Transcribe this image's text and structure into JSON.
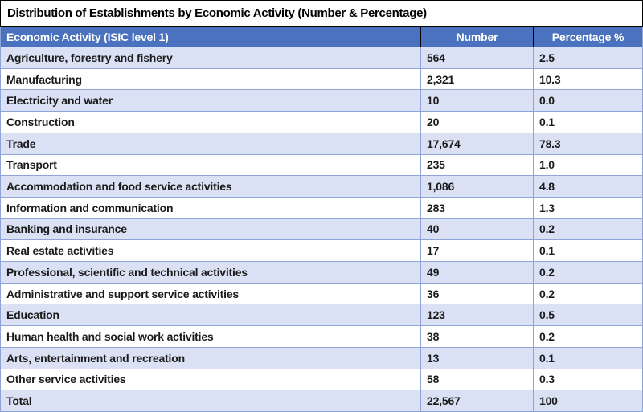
{
  "title": "Distribution of Establishments by Economic Activity (Number & Percentage)",
  "table": {
    "columns": [
      "Economic Activity (ISIC level 1)",
      "Number",
      "Percentage %"
    ],
    "rows": [
      [
        "Agriculture, forestry and fishery",
        "564",
        "2.5"
      ],
      [
        "Manufacturing",
        "2,321",
        "10.3"
      ],
      [
        "Electricity and water",
        "10",
        "0.0"
      ],
      [
        "Construction",
        "20",
        "0.1"
      ],
      [
        "Trade",
        "17,674",
        "78.3"
      ],
      [
        "Transport",
        "235",
        "1.0"
      ],
      [
        "Accommodation and food service activities",
        "1,086",
        "4.8"
      ],
      [
        "Information and communication",
        "283",
        "1.3"
      ],
      [
        "Banking and insurance",
        "40",
        "0.2"
      ],
      [
        "Real estate activities",
        "17",
        "0.1"
      ],
      [
        "Professional, scientific and technical activities",
        "49",
        "0.2"
      ],
      [
        "Administrative and support service activities",
        "36",
        "0.2"
      ],
      [
        "Education",
        "123",
        "0.5"
      ],
      [
        "Human health and social work activities",
        "38",
        "0.2"
      ],
      [
        "Arts, entertainment and recreation",
        "13",
        "0.1"
      ],
      [
        "Other service activities",
        "58",
        "0.3"
      ],
      [
        "Total",
        "22,567",
        "100"
      ]
    ]
  },
  "colors": {
    "header_bg": "#4A72BE",
    "header_text": "#FFFFFF",
    "row_alt_bg": "#DAE1F4",
    "row_bg": "#FFFFFF",
    "cell_border": "#8FA3D6",
    "title_border": "#000000",
    "body_text": "#1B1B1B"
  }
}
